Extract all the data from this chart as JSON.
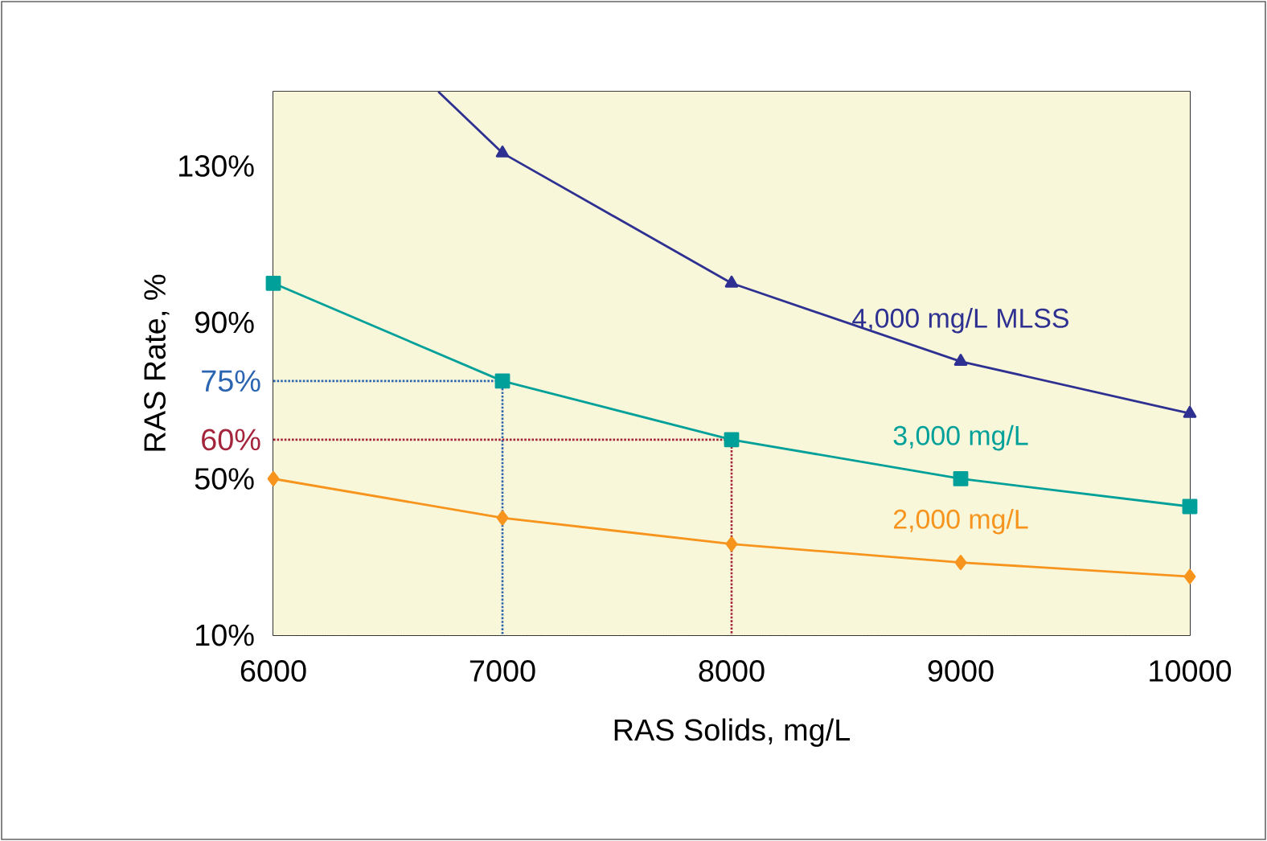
{
  "chart_data": {
    "type": "line",
    "xlabel": "RAS Solids, mg/L",
    "ylabel": "RAS Rate, %",
    "xlim": [
      6000,
      10000
    ],
    "ylim": [
      10,
      149
    ],
    "xticks": [
      6000,
      7000,
      8000,
      9000,
      10000
    ],
    "yticks": [
      {
        "value": 10,
        "label": "10%"
      },
      {
        "value": 50,
        "label": "50%"
      },
      {
        "value": 90,
        "label": "90%"
      },
      {
        "value": 130,
        "label": "130%"
      }
    ],
    "grid": "y",
    "series": [
      {
        "name": "4,000 mg/L MLSS",
        "color": "#2e3192",
        "marker": "triangle",
        "x": [
          6720,
          7000,
          8000,
          9000,
          10000
        ],
        "values": [
          149,
          133.3,
          100,
          80,
          66.7
        ]
      },
      {
        "name": "3,000 mg/L",
        "color": "#00a09a",
        "marker": "square",
        "x": [
          6000,
          7000,
          8000,
          9000,
          10000
        ],
        "values": [
          100,
          75,
          60,
          50,
          42.9
        ]
      },
      {
        "name": "2,000 mg/L",
        "color": "#f7941d",
        "marker": "diamond",
        "x": [
          6000,
          7000,
          8000,
          9000,
          10000
        ],
        "values": [
          50,
          40,
          33.3,
          28.6,
          25
        ]
      },
      {
        "color": "#2b64b0",
        "marker": "none",
        "line_style": "dotted",
        "x": [
          6000,
          7000,
          7000
        ],
        "values": [
          75,
          75,
          10
        ]
      },
      {
        "color": "#a3243b",
        "marker": "none",
        "line_style": "dotted",
        "x": [
          6000,
          8000,
          8000
        ],
        "values": [
          60,
          60,
          10
        ]
      }
    ],
    "annotations": [
      {
        "text": "75%",
        "x": 6000,
        "y": 75
      },
      {
        "text": "60%",
        "x": 6000,
        "y": 60
      }
    ]
  }
}
